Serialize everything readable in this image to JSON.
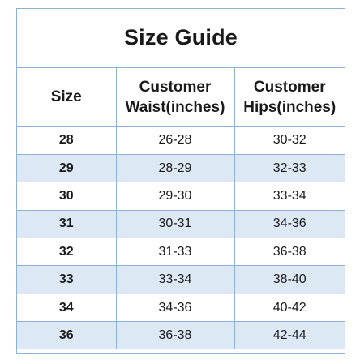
{
  "title": "Size Guide",
  "headers": {
    "size": "Size",
    "waist_line1": "Customer",
    "waist_line2": "Waist(inches)",
    "hips_line1": "Customer",
    "hips_line2": "Hips(inches)"
  },
  "rows": [
    {
      "size": "28",
      "waist": "26-28",
      "hips": "30-32"
    },
    {
      "size": "29",
      "waist": "28-29",
      "hips": "32-33"
    },
    {
      "size": "30",
      "waist": "29-30",
      "hips": "33-34"
    },
    {
      "size": "31",
      "waist": "30-31",
      "hips": "34-36"
    },
    {
      "size": "32",
      "waist": "31-33",
      "hips": "36-38"
    },
    {
      "size": "33",
      "waist": "33-34",
      "hips": "38-40"
    },
    {
      "size": "34",
      "waist": "34-36",
      "hips": "40-42"
    },
    {
      "size": "36",
      "waist": "36-38",
      "hips": "42-44"
    }
  ],
  "colors": {
    "border": "#8fb1d6",
    "alt_row": "#dde8f5",
    "text": "#1a1a1a"
  }
}
